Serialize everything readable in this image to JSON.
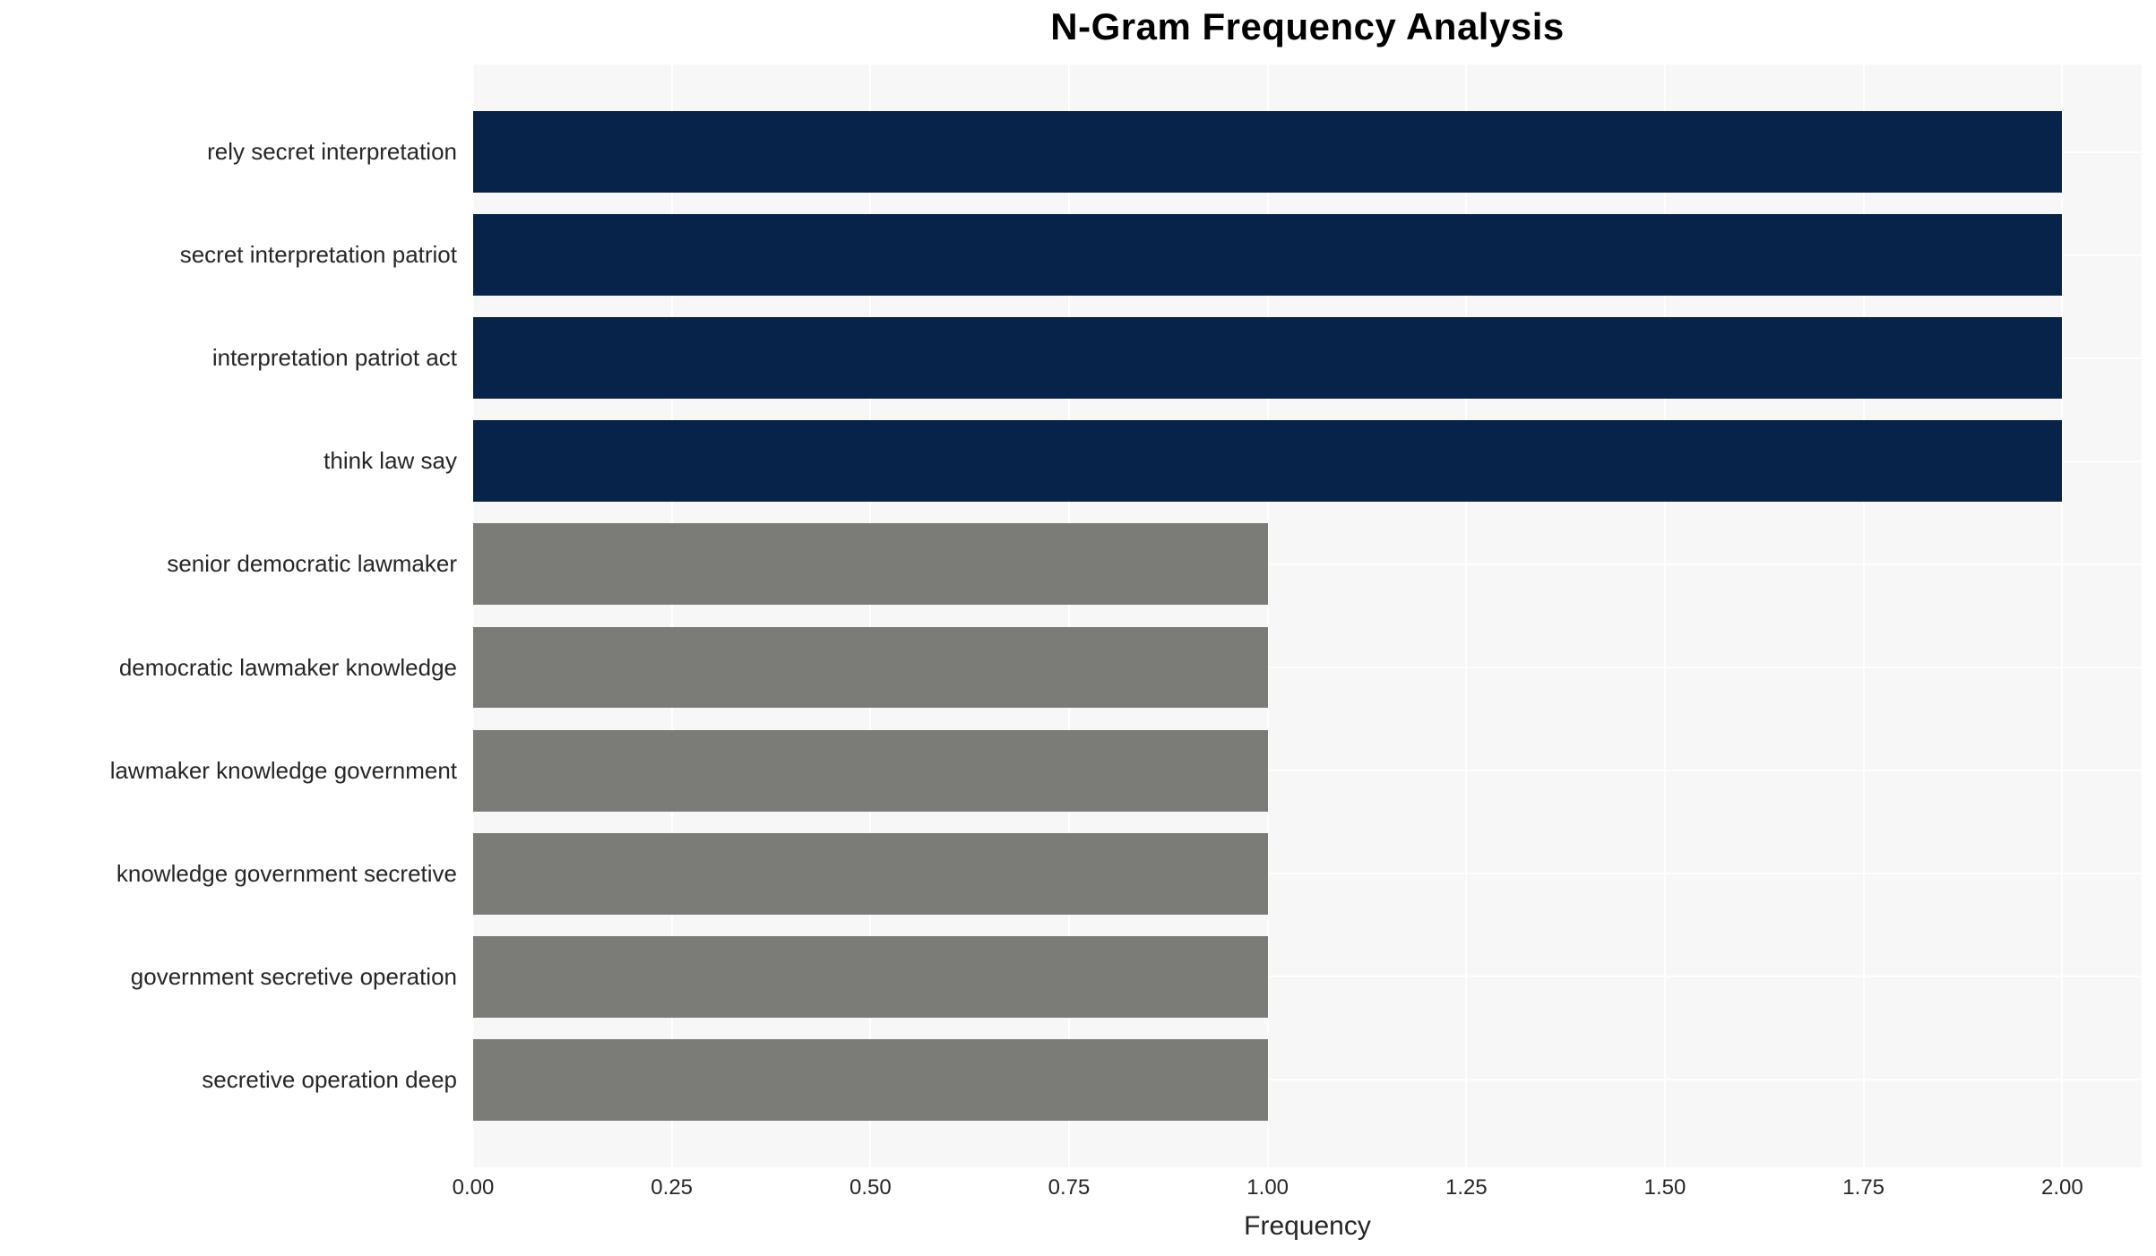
{
  "title": "N-Gram Frequency Analysis",
  "chart_data": {
    "type": "bar",
    "orientation": "horizontal",
    "title": "N-Gram Frequency Analysis",
    "xlabel": "Frequency",
    "ylabel": "",
    "categories": [
      "rely secret interpretation",
      "secret interpretation patriot",
      "interpretation patriot act",
      "think law say",
      "senior democratic lawmaker",
      "democratic lawmaker knowledge",
      "lawmaker knowledge government",
      "knowledge government secretive",
      "government secretive operation",
      "secretive operation deep"
    ],
    "values": [
      2,
      2,
      2,
      2,
      1,
      1,
      1,
      1,
      1,
      1
    ],
    "xlim": [
      0,
      2.1
    ],
    "xticks": [
      {
        "value": 0.0,
        "label": "0.00"
      },
      {
        "value": 0.25,
        "label": "0.25"
      },
      {
        "value": 0.5,
        "label": "0.50"
      },
      {
        "value": 0.75,
        "label": "0.75"
      },
      {
        "value": 1.0,
        "label": "1.00"
      },
      {
        "value": 1.25,
        "label": "1.25"
      },
      {
        "value": 1.5,
        "label": "1.50"
      },
      {
        "value": 1.75,
        "label": "1.75"
      },
      {
        "value": 2.0,
        "label": "2.00"
      }
    ],
    "grid": true,
    "legend_position": "none",
    "colors": {
      "bar_high": "#07234a",
      "bar_low": "#7b7b78",
      "plot_background": "#f7f7f7",
      "grid_color": "#ffffff",
      "text_color": "#262626",
      "title_color": "#000000"
    },
    "color_rule": "bars with value 2 are dark navy, bars with value 1 are gray"
  }
}
